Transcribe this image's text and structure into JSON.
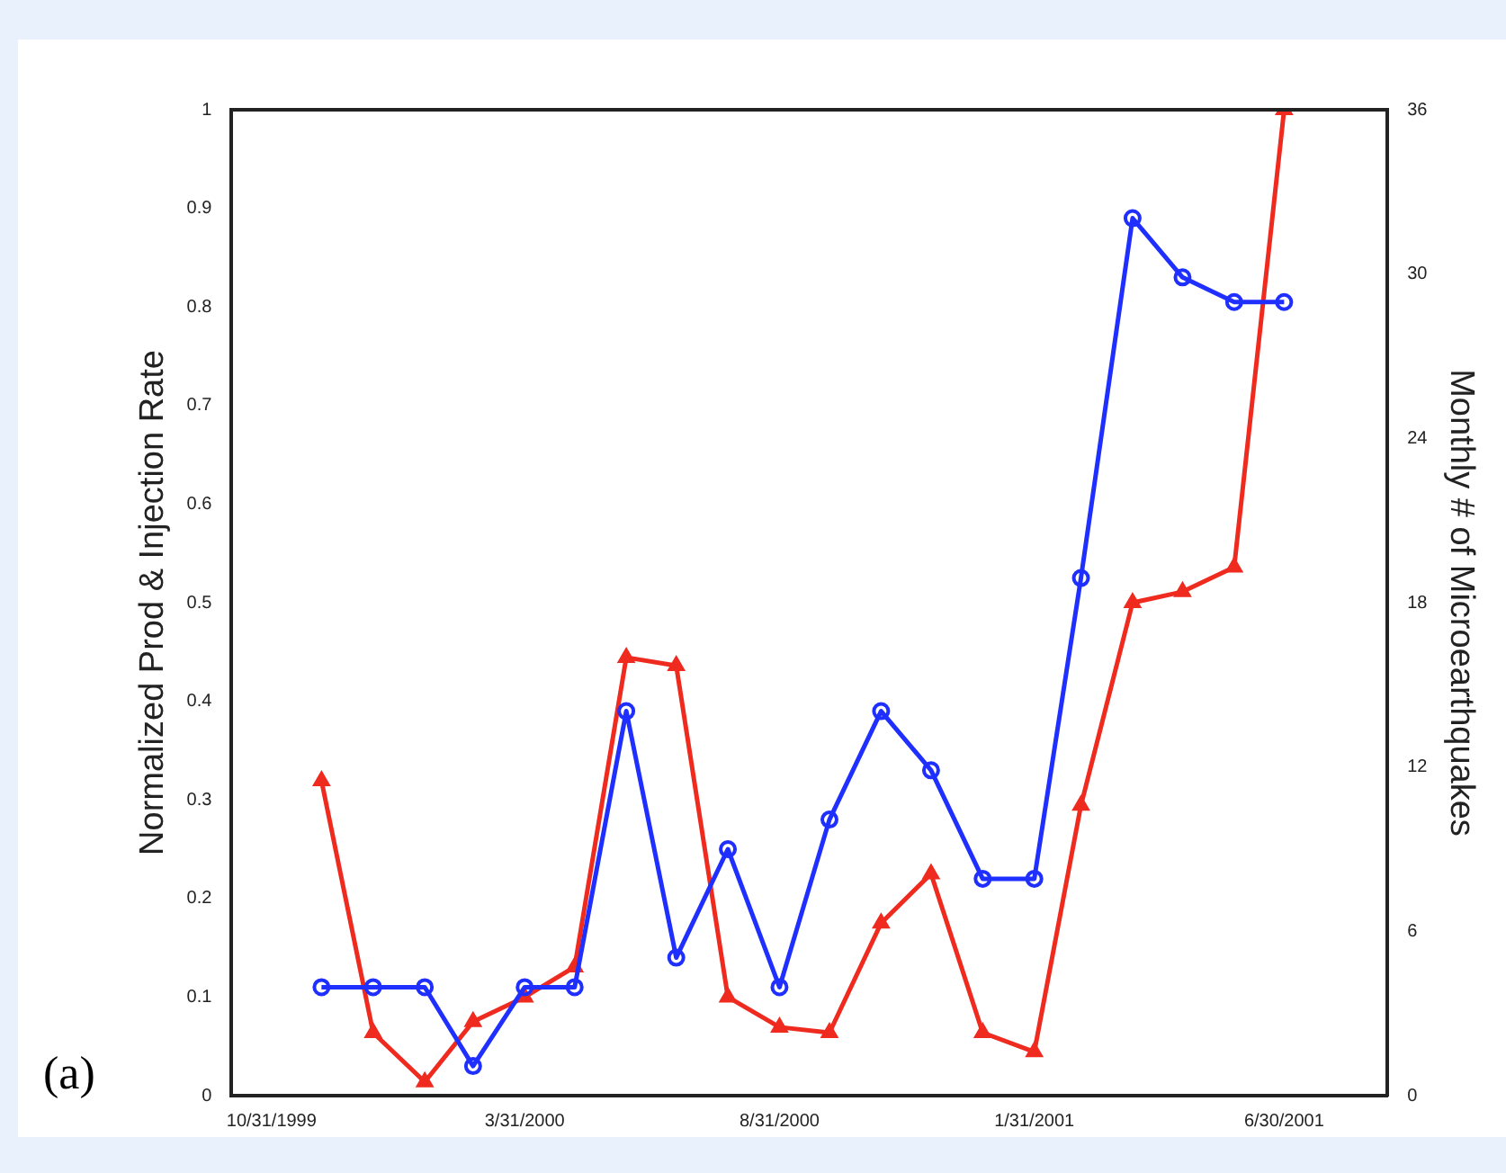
{
  "chart_data": {
    "type": "line",
    "ylabel": "Normalized Prod & Injection Rate",
    "y2label": "Monthly # of Microearthquakes",
    "annotations": [
      "(a)"
    ],
    "x": [
      "1999-11-30",
      "1999-12-31",
      "2000-01-31",
      "2000-02-29",
      "2000-03-31",
      "2000-04-30",
      "2000-05-31",
      "2000-06-30",
      "2000-07-31",
      "2000-08-31",
      "2000-09-30",
      "2000-10-31",
      "2000-11-30",
      "2000-12-31",
      "2001-01-31",
      "2001-02-28",
      "2001-03-31",
      "2001-04-30",
      "2001-05-31",
      "2001-06-30"
    ],
    "series": [
      {
        "color": "#1f2fff",
        "marker": "circle",
        "values": [
          0.11,
          0.11,
          0.11,
          0.03,
          0.11,
          0.11,
          0.39,
          0.14,
          0.25,
          0.11,
          0.28,
          0.39,
          0.33,
          0.22,
          0.22,
          0.525,
          0.89,
          0.83,
          0.805,
          0.805
        ]
      },
      {
        "color": "#ef2a1f",
        "marker": "triangle",
        "axis": "y2",
        "values": [
          11.5,
          2.3,
          0.5,
          2.7,
          3.6,
          4.7,
          16,
          15.7,
          3.6,
          2.5,
          2.3,
          6.3,
          8.1,
          2.3,
          1.6,
          10.6,
          18,
          18.4,
          19.3,
          36
        ]
      }
    ],
    "xlim": [
      "1999-10-07",
      "2001-08-31"
    ],
    "xticks": [
      {
        "value": "1999-10-31",
        "label": "10/31/1999"
      },
      {
        "value": "2000-03-31",
        "label": "3/31/2000"
      },
      {
        "value": "2000-08-31",
        "label": "8/31/2000"
      },
      {
        "value": "2001-01-31",
        "label": "1/31/2001"
      },
      {
        "value": "2001-06-30",
        "label": "6/30/2001"
      }
    ],
    "ylim": [
      0,
      1
    ],
    "yticks": [
      0,
      0.1,
      0.2,
      0.3,
      0.4,
      0.5,
      0.6,
      0.7,
      0.8,
      0.9,
      1
    ],
    "y2lim": [
      0,
      36
    ],
    "y2ticks": [
      0,
      6,
      12,
      18,
      24,
      30,
      36
    ],
    "grid": false,
    "legend": false,
    "line_style": "solid"
  }
}
